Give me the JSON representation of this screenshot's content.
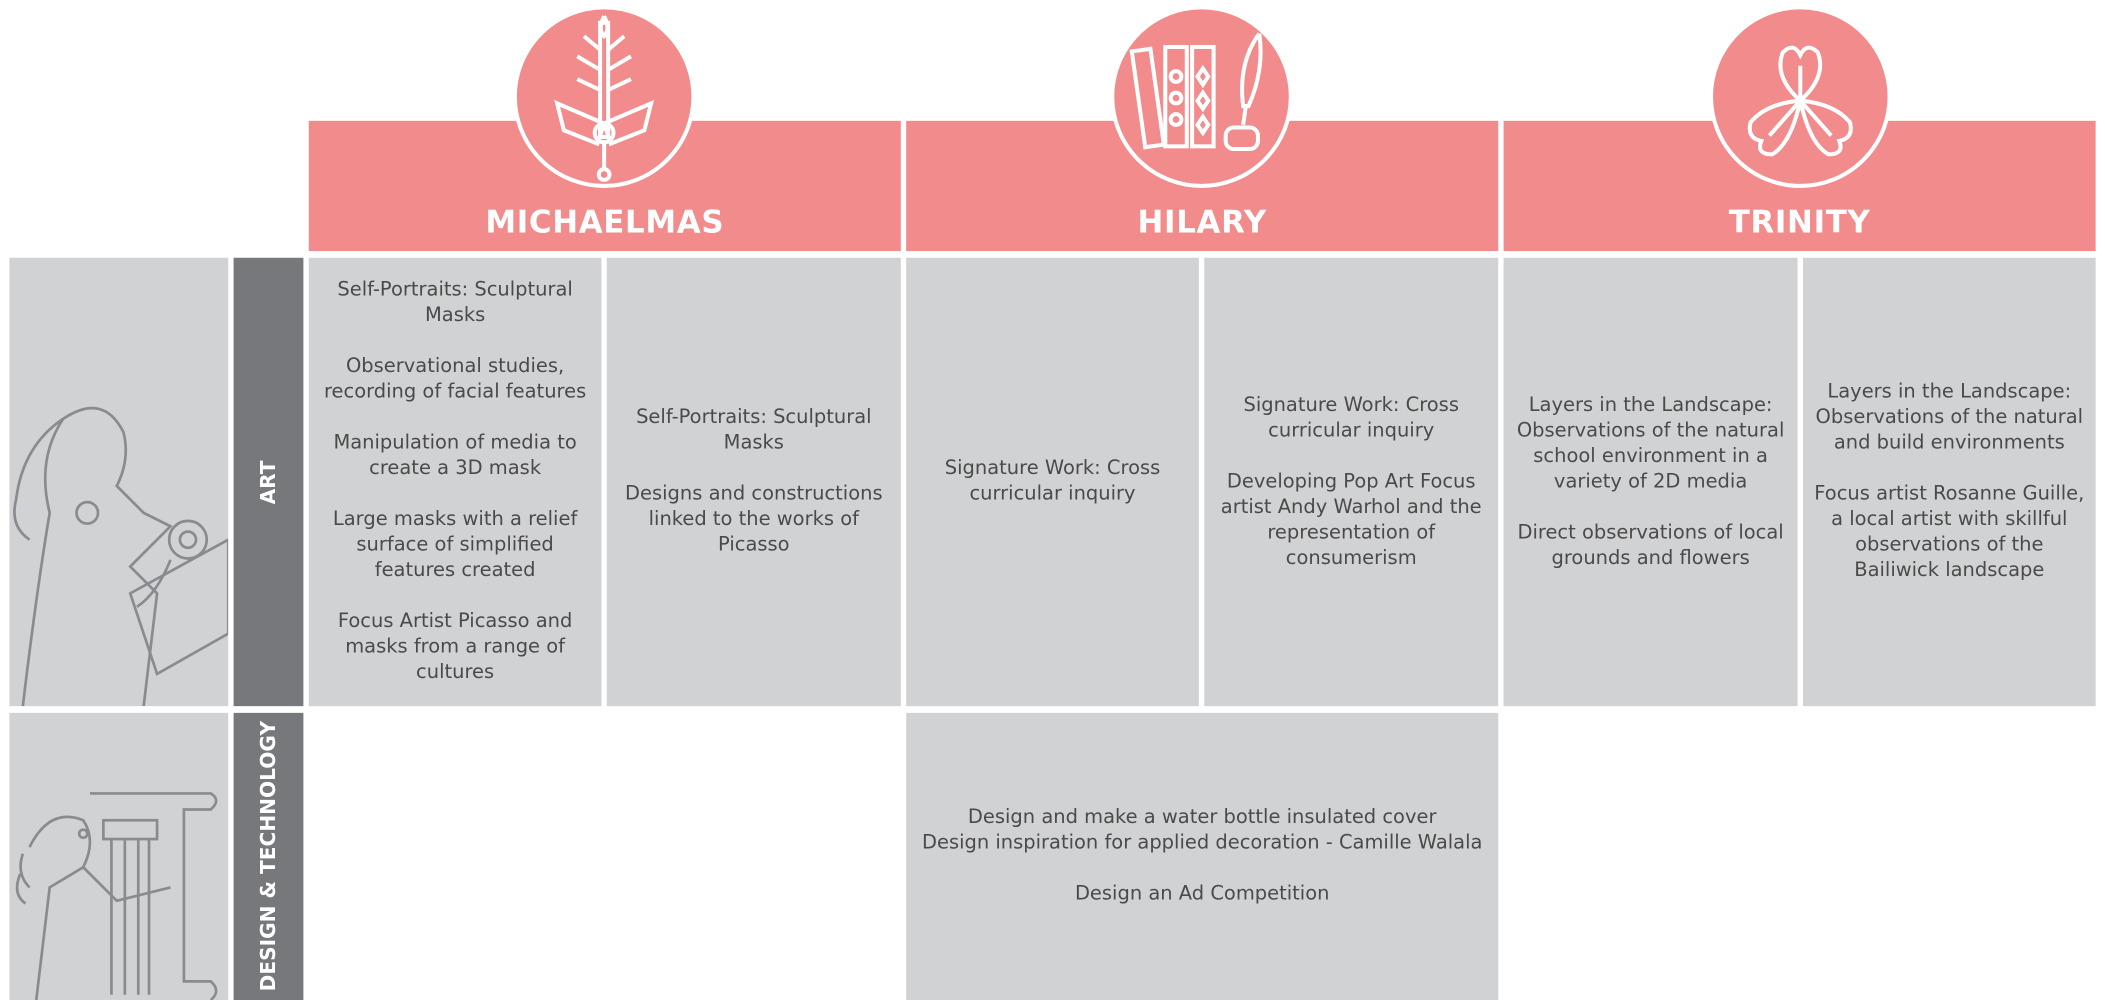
{
  "header": {
    "columns": [
      {
        "title": "MICHAELMAS"
      },
      {
        "title": "HILARY"
      },
      {
        "title": "TRINITY"
      }
    ]
  },
  "rows": [
    {
      "label": "ART",
      "cells": [
        {
          "paragraphs": [
            "Self-Portraits: Sculptural Masks",
            "Observational studies, recording of facial features",
            "Manipulation of media to create a 3D mask",
            "Large masks with a relief surface of simplified features created",
            "Focus Artist Picasso and masks from a range of cultures"
          ]
        },
        {
          "paragraphs": [
            "Self-Portraits: Sculptural Masks",
            "Designs and constructions linked to the works of Picasso"
          ]
        },
        {
          "paragraphs": [
            "Signature Work: Cross curricular inquiry"
          ]
        },
        {
          "paragraphs": [
            "Signature Work: Cross curricular inquiry",
            "Developing Pop Art Focus artist Andy Warhol and the representation of consumerism"
          ]
        },
        {
          "paragraphs": [
            "Layers in the Landscape: Observations of the natural school environment in a variety of 2D media",
            "Direct observations of local grounds and flowers"
          ]
        },
        {
          "paragraphs": [
            "Layers in the Landscape: Observations of the natural and build environments",
            "Focus artist Rosanne Guille, a local artist with skillful observations of the Bailiwick landscape"
          ]
        }
      ]
    },
    {
      "label": "DESIGN & TECHNOLOGY",
      "cells": [
        {
          "lines": [
            "Design and make a water bottle insulated cover",
            "Design inspiration for applied decoration - Camille Walala"
          ],
          "paragraphs": [
            "Design an Ad Competition"
          ]
        }
      ]
    }
  ]
}
